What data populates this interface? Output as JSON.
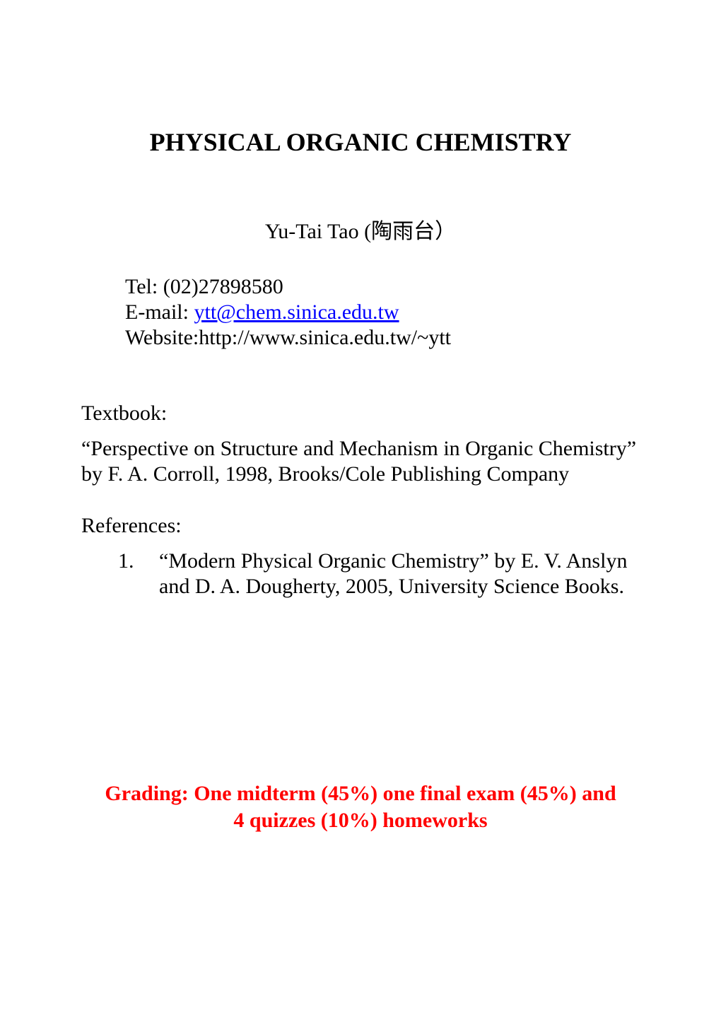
{
  "title": "PHYSICAL ORGANIC CHEMISTRY",
  "instructor": {
    "name_line": "Yu-Tai Tao  (陶雨台）"
  },
  "contact": {
    "tel_label": "Tel: ",
    "tel_value": "(02)27898580",
    "email_label": "E-mail: ",
    "email_value": "ytt@chem.sinica.edu.tw",
    "website_label": "Website:",
    "website_value": "http://www.sinica.edu.tw/~ytt"
  },
  "textbook": {
    "heading": "Textbook:",
    "body": "“Perspective on Structure and Mechanism in Organic Chemistry” by F. A. Corroll, 1998, Brooks/Cole Publishing Company"
  },
  "references": {
    "heading": "References:",
    "items": [
      {
        "number": "1.",
        "text": "“Modern Physical Organic  Chemistry” by E. V. Anslyn and D. A. Dougherty, 2005, University Science Books."
      }
    ]
  },
  "grading": {
    "line1": "Grading: One midterm (45%) one final exam (45%) and",
    "line2": "4 quizzes (10%)  homeworks"
  },
  "colors": {
    "text": "#000000",
    "link": "#0000ff",
    "grading": "#ff0000",
    "background": "#ffffff"
  },
  "typography": {
    "font_family": "Times New Roman",
    "title_size_pt": 27,
    "body_size_pt": 22.5
  }
}
